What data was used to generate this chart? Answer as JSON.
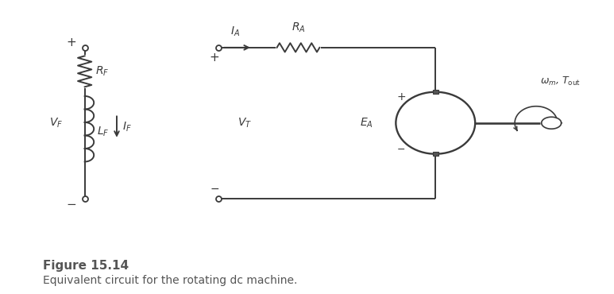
{
  "bg_color": "#ffffff",
  "line_color": "#3a3a3a",
  "fig_title": "Figure 15.14",
  "fig_caption": "Equivalent circuit for the rotating dc machine.",
  "title_fontsize": 11,
  "caption_fontsize": 10,
  "label_fontsize": 10
}
